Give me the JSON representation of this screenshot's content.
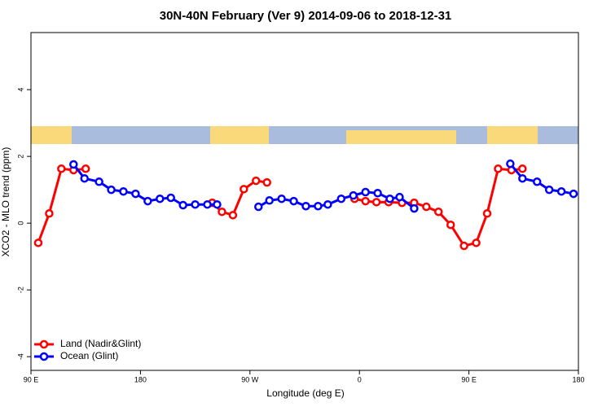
{
  "chart_data": {
    "type": "line",
    "title": "30N-40N February (Ver 9)   2014-09-06 to 2018-12-31",
    "x_label": "Longitude (deg E)",
    "y_label": "XCO2 - MLO trend (ppm)",
    "xlim": [
      90,
      540
    ],
    "ylim": [
      -4.41,
      5.71
    ],
    "xticks": [
      {
        "value": 90,
        "label": "90 E"
      },
      {
        "value": 180,
        "label": "180"
      },
      {
        "value": 270,
        "label": "90 W"
      },
      {
        "value": 360,
        "label": "0"
      },
      {
        "value": 450,
        "label": "90 E"
      },
      {
        "value": 540,
        "label": "180"
      }
    ],
    "yticks": [
      -4,
      -2,
      0,
      2,
      4
    ],
    "legend": "bottom-left",
    "series": [
      {
        "name": "Land (Nadir&Glint)",
        "color": "#ff0000",
        "x": [
          96,
          105,
          115,
          125,
          135,
          null,
          239,
          247,
          256,
          265,
          275,
          284,
          null,
          356,
          365,
          374,
          384,
          395,
          405,
          415,
          425,
          435,
          446,
          456,
          465,
          474,
          485,
          494
        ],
        "values": [
          -0.59,
          0.29,
          1.63,
          1.59,
          1.63,
          null,
          0.61,
          0.34,
          0.24,
          1.02,
          1.27,
          1.22,
          null,
          0.73,
          0.66,
          0.63,
          0.63,
          0.61,
          0.61,
          0.49,
          0.34,
          -0.05,
          -0.68,
          -0.59,
          0.29,
          1.63,
          1.59,
          1.63
        ]
      },
      {
        "name": "Ocean (Glint)",
        "color": "#0000ff",
        "x": [
          125,
          134,
          146,
          156,
          166,
          176,
          186,
          196,
          205,
          215,
          225,
          235,
          243,
          null,
          277,
          286,
          296,
          306,
          316,
          326,
          334,
          345,
          355,
          365,
          375,
          385,
          393,
          405,
          null,
          484,
          494,
          506,
          516,
          526,
          536
        ],
        "values": [
          1.76,
          1.34,
          1.24,
          1.0,
          0.95,
          0.88,
          0.66,
          0.73,
          0.76,
          0.54,
          0.56,
          0.56,
          0.56,
          null,
          0.49,
          0.68,
          0.73,
          0.66,
          0.51,
          0.51,
          0.56,
          0.73,
          0.83,
          0.93,
          0.9,
          0.73,
          0.78,
          0.44,
          null,
          1.78,
          1.34,
          1.24,
          1.0,
          0.95,
          0.88
        ]
      }
    ]
  }
}
